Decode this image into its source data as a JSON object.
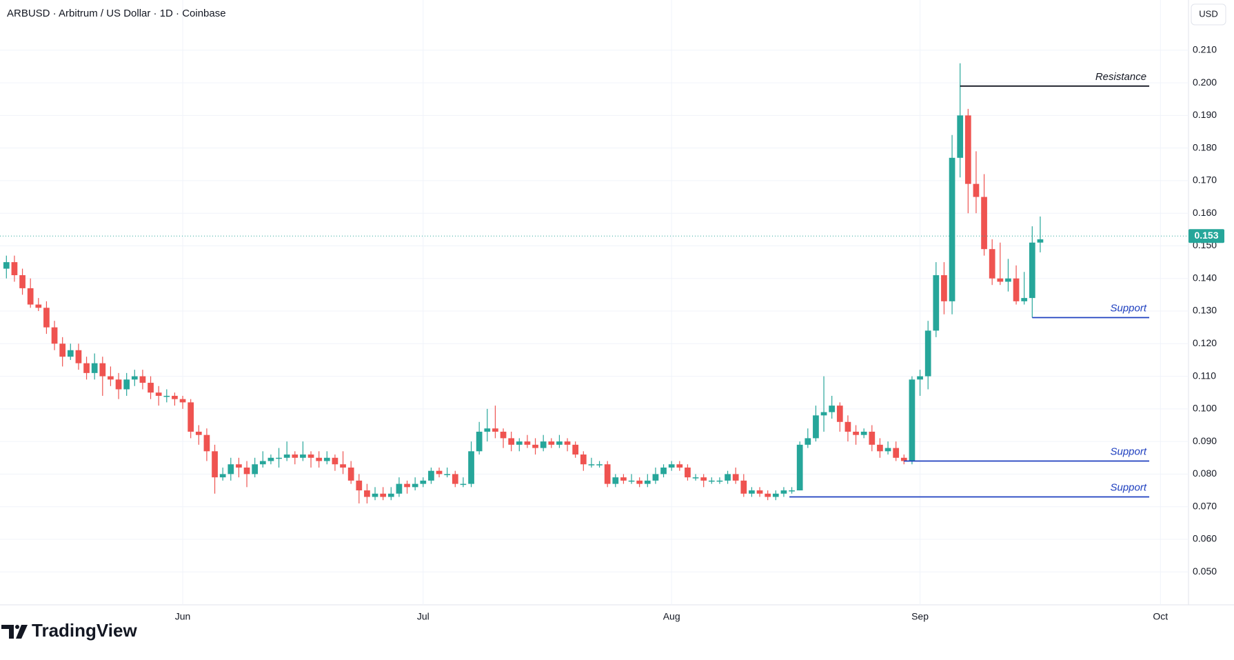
{
  "header": {
    "title": "ARBUSD · Arbitrum / US Dollar · 1D · Coinbase",
    "currency": "USD"
  },
  "chart_data": {
    "type": "candlestick",
    "x": [
      0,
      1,
      2,
      3,
      4,
      5,
      6,
      7,
      8,
      9,
      10,
      11,
      12,
      13,
      14,
      15,
      16,
      17,
      18,
      19,
      20,
      21,
      22,
      23,
      24,
      25,
      26,
      27,
      28,
      29,
      30,
      31,
      32,
      33,
      34,
      35,
      36,
      37,
      38,
      39,
      40,
      41,
      42,
      43,
      44,
      45,
      46,
      47,
      48,
      49,
      50,
      51,
      52,
      53,
      54,
      55,
      56,
      57,
      58,
      59,
      60,
      61,
      62,
      63,
      64,
      65,
      66,
      67,
      68,
      69,
      70,
      71,
      72,
      73,
      74,
      75,
      76,
      77,
      78,
      79,
      80,
      81,
      82,
      83,
      84,
      85,
      86,
      87,
      88,
      89,
      90,
      91,
      92,
      93,
      94,
      95,
      96,
      97,
      98,
      99,
      100,
      101,
      102,
      103,
      104,
      105,
      106,
      107,
      108,
      109,
      110,
      111,
      112,
      113,
      114,
      115,
      116,
      117,
      118,
      119,
      120,
      121,
      122,
      123,
      124,
      125,
      126,
      127,
      128,
      129
    ],
    "open": [
      0.143,
      0.145,
      0.141,
      0.137,
      0.132,
      0.131,
      0.125,
      0.12,
      0.116,
      0.118,
      0.114,
      0.111,
      0.114,
      0.11,
      0.109,
      0.106,
      0.109,
      0.11,
      0.108,
      0.105,
      0.104,
      0.104,
      0.103,
      0.102,
      0.093,
      0.092,
      0.087,
      0.079,
      0.08,
      0.083,
      0.082,
      0.08,
      0.083,
      0.084,
      0.085,
      0.085,
      0.086,
      0.085,
      0.086,
      0.085,
      0.084,
      0.085,
      0.083,
      0.082,
      0.078,
      0.075,
      0.073,
      0.074,
      0.073,
      0.074,
      0.077,
      0.076,
      0.077,
      0.078,
      0.081,
      0.08,
      0.08,
      0.077,
      0.077,
      0.087,
      0.093,
      0.094,
      0.093,
      0.091,
      0.089,
      0.09,
      0.089,
      0.088,
      0.09,
      0.089,
      0.09,
      0.089,
      0.086,
      0.083,
      0.083,
      0.083,
      0.077,
      0.079,
      0.078,
      0.078,
      0.077,
      0.078,
      0.08,
      0.082,
      0.083,
      0.082,
      0.079,
      0.079,
      0.078,
      0.078,
      0.078,
      0.08,
      0.078,
      0.074,
      0.075,
      0.074,
      0.073,
      0.074,
      0.075,
      0.075,
      0.089,
      0.091,
      0.098,
      0.099,
      0.101,
      0.096,
      0.093,
      0.092,
      0.093,
      0.089,
      0.087,
      0.088,
      0.085,
      0.084,
      0.109,
      0.11,
      0.124,
      0.141,
      0.133,
      0.177,
      0.19,
      0.169,
      0.165,
      0.149,
      0.14,
      0.139,
      0.14,
      0.133,
      0.134,
      0.151
    ],
    "high": [
      0.147,
      0.147,
      0.143,
      0.14,
      0.134,
      0.133,
      0.127,
      0.122,
      0.12,
      0.12,
      0.116,
      0.117,
      0.116,
      0.113,
      0.111,
      0.111,
      0.112,
      0.112,
      0.11,
      0.107,
      0.106,
      0.105,
      0.104,
      0.103,
      0.095,
      0.094,
      0.089,
      0.082,
      0.085,
      0.085,
      0.084,
      0.085,
      0.087,
      0.086,
      0.088,
      0.09,
      0.087,
      0.09,
      0.087,
      0.087,
      0.087,
      0.086,
      0.087,
      0.084,
      0.08,
      0.077,
      0.076,
      0.076,
      0.076,
      0.079,
      0.078,
      0.079,
      0.079,
      0.082,
      0.082,
      0.082,
      0.081,
      0.079,
      0.09,
      0.096,
      0.1,
      0.101,
      0.094,
      0.093,
      0.091,
      0.092,
      0.091,
      0.092,
      0.091,
      0.092,
      0.091,
      0.09,
      0.087,
      0.085,
      0.084,
      0.084,
      0.08,
      0.08,
      0.08,
      0.079,
      0.08,
      0.082,
      0.083,
      0.084,
      0.084,
      0.083,
      0.08,
      0.08,
      0.079,
      0.079,
      0.081,
      0.082,
      0.08,
      0.076,
      0.076,
      0.075,
      0.075,
      0.076,
      0.076,
      0.09,
      0.094,
      0.101,
      0.11,
      0.104,
      0.102,
      0.098,
      0.095,
      0.094,
      0.095,
      0.091,
      0.09,
      0.09,
      0.086,
      0.11,
      0.112,
      0.127,
      0.145,
      0.145,
      0.184,
      0.206,
      0.192,
      0.179,
      0.172,
      0.152,
      0.151,
      0.146,
      0.144,
      0.142,
      0.156,
      0.159
    ],
    "low": [
      0.14,
      0.139,
      0.135,
      0.131,
      0.13,
      0.123,
      0.118,
      0.113,
      0.115,
      0.112,
      0.109,
      0.109,
      0.104,
      0.107,
      0.103,
      0.104,
      0.107,
      0.106,
      0.103,
      0.101,
      0.102,
      0.101,
      0.1,
      0.091,
      0.089,
      0.084,
      0.074,
      0.078,
      0.078,
      0.079,
      0.076,
      0.079,
      0.082,
      0.083,
      0.082,
      0.084,
      0.083,
      0.084,
      0.082,
      0.082,
      0.083,
      0.081,
      0.08,
      0.077,
      0.071,
      0.071,
      0.072,
      0.072,
      0.072,
      0.073,
      0.074,
      0.075,
      0.076,
      0.077,
      0.079,
      0.079,
      0.076,
      0.076,
      0.076,
      0.086,
      0.09,
      0.091,
      0.088,
      0.087,
      0.087,
      0.088,
      0.086,
      0.087,
      0.088,
      0.088,
      0.087,
      0.085,
      0.081,
      0.082,
      0.082,
      0.076,
      0.076,
      0.077,
      0.077,
      0.076,
      0.076,
      0.077,
      0.079,
      0.081,
      0.081,
      0.078,
      0.078,
      0.076,
      0.077,
      0.077,
      0.077,
      0.077,
      0.073,
      0.073,
      0.073,
      0.072,
      0.072,
      0.073,
      0.074,
      0.075,
      0.088,
      0.09,
      0.093,
      0.097,
      0.093,
      0.09,
      0.089,
      0.091,
      0.087,
      0.085,
      0.086,
      0.084,
      0.083,
      0.083,
      0.104,
      0.106,
      0.122,
      0.129,
      0.129,
      0.171,
      0.16,
      0.16,
      0.147,
      0.138,
      0.138,
      0.136,
      0.132,
      0.132,
      0.128,
      0.148
    ],
    "close": [
      0.145,
      0.141,
      0.137,
      0.132,
      0.131,
      0.125,
      0.12,
      0.116,
      0.118,
      0.114,
      0.111,
      0.114,
      0.11,
      0.109,
      0.106,
      0.109,
      0.11,
      0.108,
      0.105,
      0.104,
      0.104,
      0.103,
      0.102,
      0.093,
      0.092,
      0.087,
      0.079,
      0.08,
      0.083,
      0.082,
      0.08,
      0.083,
      0.084,
      0.085,
      0.085,
      0.086,
      0.085,
      0.086,
      0.085,
      0.084,
      0.085,
      0.083,
      0.082,
      0.078,
      0.075,
      0.073,
      0.074,
      0.073,
      0.074,
      0.077,
      0.076,
      0.077,
      0.078,
      0.081,
      0.08,
      0.08,
      0.077,
      0.077,
      0.087,
      0.093,
      0.094,
      0.093,
      0.091,
      0.089,
      0.09,
      0.089,
      0.088,
      0.09,
      0.089,
      0.09,
      0.089,
      0.086,
      0.083,
      0.083,
      0.083,
      0.077,
      0.079,
      0.078,
      0.078,
      0.077,
      0.078,
      0.08,
      0.082,
      0.083,
      0.082,
      0.079,
      0.079,
      0.078,
      0.078,
      0.078,
      0.08,
      0.078,
      0.074,
      0.075,
      0.074,
      0.073,
      0.074,
      0.075,
      0.075,
      0.089,
      0.091,
      0.098,
      0.099,
      0.101,
      0.096,
      0.093,
      0.092,
      0.093,
      0.089,
      0.087,
      0.088,
      0.085,
      0.084,
      0.109,
      0.11,
      0.124,
      0.141,
      0.133,
      0.177,
      0.19,
      0.169,
      0.165,
      0.149,
      0.14,
      0.139,
      0.14,
      0.133,
      0.134,
      0.151,
      0.152
    ],
    "up_color": "#26a69a",
    "down_color": "#ef5350",
    "xlim": [
      -0.8,
      147.5
    ],
    "xticks": [
      {
        "value": 22,
        "label": "Jun"
      },
      {
        "value": 52,
        "label": "Jul"
      },
      {
        "value": 83,
        "label": "Aug"
      },
      {
        "value": 114,
        "label": "Sep"
      },
      {
        "value": 144,
        "label": "Oct"
      }
    ],
    "ylim": [
      0.0399,
      0.2254
    ],
    "yticks": [
      {
        "value": 0.05,
        "label": "0.050"
      },
      {
        "value": 0.06,
        "label": "0.060"
      },
      {
        "value": 0.07,
        "label": "0.070"
      },
      {
        "value": 0.08,
        "label": "0.080"
      },
      {
        "value": 0.09,
        "label": "0.090"
      },
      {
        "value": 0.1,
        "label": "0.100"
      },
      {
        "value": 0.11,
        "label": "0.110"
      },
      {
        "value": 0.12,
        "label": "0.120"
      },
      {
        "value": 0.13,
        "label": "0.130"
      },
      {
        "value": 0.14,
        "label": "0.140"
      },
      {
        "value": 0.15,
        "label": "0.150"
      },
      {
        "value": 0.16,
        "label": "0.160"
      },
      {
        "value": 0.17,
        "label": "0.170"
      },
      {
        "value": 0.18,
        "label": "0.180"
      },
      {
        "value": 0.19,
        "label": "0.190"
      },
      {
        "value": 0.2,
        "label": "0.200"
      },
      {
        "value": 0.21,
        "label": "0.210"
      }
    ],
    "grid": true,
    "last_price": 0.153,
    "annotations": [
      {
        "label": "Resistance",
        "value": 0.199,
        "x_start": 119,
        "x_end": 142.6,
        "color": "#131722"
      },
      {
        "label": "Support",
        "value": 0.128,
        "x_start": 128,
        "x_end": 142.6,
        "color": "#1e3fbf"
      },
      {
        "label": "Support",
        "value": 0.084,
        "x_start": 112,
        "x_end": 142.6,
        "color": "#1e3fbf"
      },
      {
        "label": "Support",
        "value": 0.073,
        "x_start": 97.7,
        "x_end": 142.6,
        "color": "#1e3fbf"
      }
    ]
  },
  "footer": {
    "brand": "TradingView"
  }
}
